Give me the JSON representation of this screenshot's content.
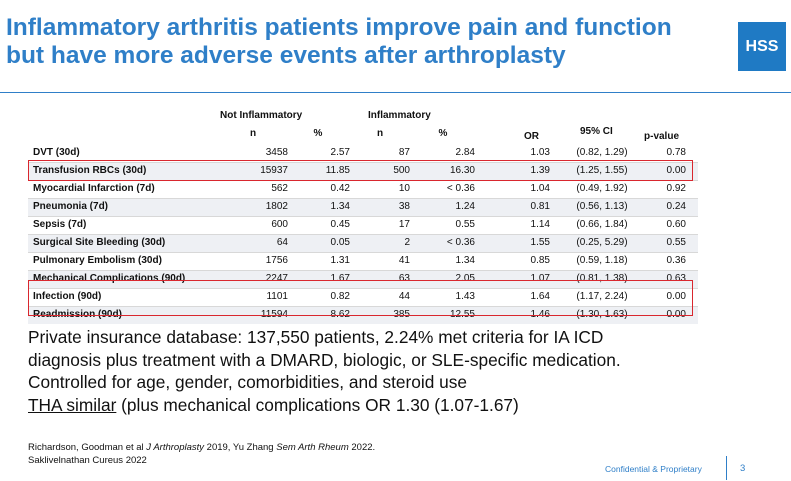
{
  "title": {
    "line1": "Inflammatory arthritis patients improve pain and function",
    "line2": "but have more adverse events after arthroplasty"
  },
  "logo": {
    "text": "HSS",
    "color": "#1f7ac4"
  },
  "table": {
    "group_not_inflammatory": "Not Inflammatory",
    "group_inflammatory": "Inflammatory",
    "col_n": "n",
    "col_pct": "%",
    "col_or": "OR",
    "col_ci": "95% CI",
    "col_pvalue": "p-value",
    "rows": [
      {
        "label": "DVT (30d)",
        "n1": "3458",
        "p1": "2.57",
        "n2": "87",
        "p2": "2.84",
        "or": "1.03",
        "ci": "(0.82, 1.29)",
        "pv": "0.78"
      },
      {
        "label": "Transfusion RBCs (30d)",
        "n1": "15937",
        "p1": "11.85",
        "n2": "500",
        "p2": "16.30",
        "or": "1.39",
        "ci": "(1.25, 1.55)",
        "pv": "0.00"
      },
      {
        "label": "Myocardial Infarction (7d)",
        "n1": "562",
        "p1": "0.42",
        "n2": "10",
        "p2": "< 0.36",
        "or": "1.04",
        "ci": "(0.49, 1.92)",
        "pv": "0.92"
      },
      {
        "label": "Pneumonia (7d)",
        "n1": "1802",
        "p1": "1.34",
        "n2": "38",
        "p2": "1.24",
        "or": "0.81",
        "ci": "(0.56, 1.13)",
        "pv": "0.24"
      },
      {
        "label": "Sepsis (7d)",
        "n1": "600",
        "p1": "0.45",
        "n2": "17",
        "p2": "0.55",
        "or": "1.14",
        "ci": "(0.66, 1.84)",
        "pv": "0.60"
      },
      {
        "label": "Surgical Site Bleeding (30d)",
        "n1": "64",
        "p1": "0.05",
        "n2": "2",
        "p2": "< 0.36",
        "or": "1.55",
        "ci": "(0.25, 5.29)",
        "pv": "0.55"
      },
      {
        "label": "Pulmonary Embolism (30d)",
        "n1": "1756",
        "p1": "1.31",
        "n2": "41",
        "p2": "1.34",
        "or": "0.85",
        "ci": "(0.59, 1.18)",
        "pv": "0.36"
      },
      {
        "label": "Mechanical Complications (90d)",
        "n1": "2247",
        "p1": "1.67",
        "n2": "63",
        "p2": "2.05",
        "or": "1.07",
        "ci": "(0.81, 1.38)",
        "pv": "0.63"
      },
      {
        "label": "Infection (90d)",
        "n1": "1101",
        "p1": "0.82",
        "n2": "44",
        "p2": "1.43",
        "or": "1.64",
        "ci": "(1.17, 2.24)",
        "pv": "0.00"
      },
      {
        "label": "Readmission (90d)",
        "n1": "11594",
        "p1": "8.62",
        "n2": "385",
        "p2": "12.55",
        "or": "1.46",
        "ci": "(1.30, 1.63)",
        "pv": "0.00"
      }
    ],
    "highlight_color": "#d9272e"
  },
  "body": {
    "line1": "Private insurance database: 137,550 patients, 2.24% met criteria for IA ICD",
    "line2": "diagnosis plus treatment with a DMARD, biologic, or SLE-specific medication.",
    "line3": "Controlled for age, gender, comorbidities, and steroid use",
    "line4_underlined": "THA similar",
    "line4_rest": " (plus mechanical complications OR 1.30 (1.07-1.67)"
  },
  "references": {
    "line1_a": "Richardson, Goodman et al ",
    "line1_journal1": "J Arthroplasty",
    "line1_b": " 2019, Yu Zhang ",
    "line1_journal2": "Sem Arth Rheum",
    "line1_c": " 2022.",
    "line2": "Saklivelnathan Cureus 2022"
  },
  "footer": {
    "confidential": "Confidential & Proprietary",
    "page_number": "3"
  },
  "colors": {
    "title_blue": "#2f7fc8",
    "footer_blue": "#2f7fc8"
  }
}
